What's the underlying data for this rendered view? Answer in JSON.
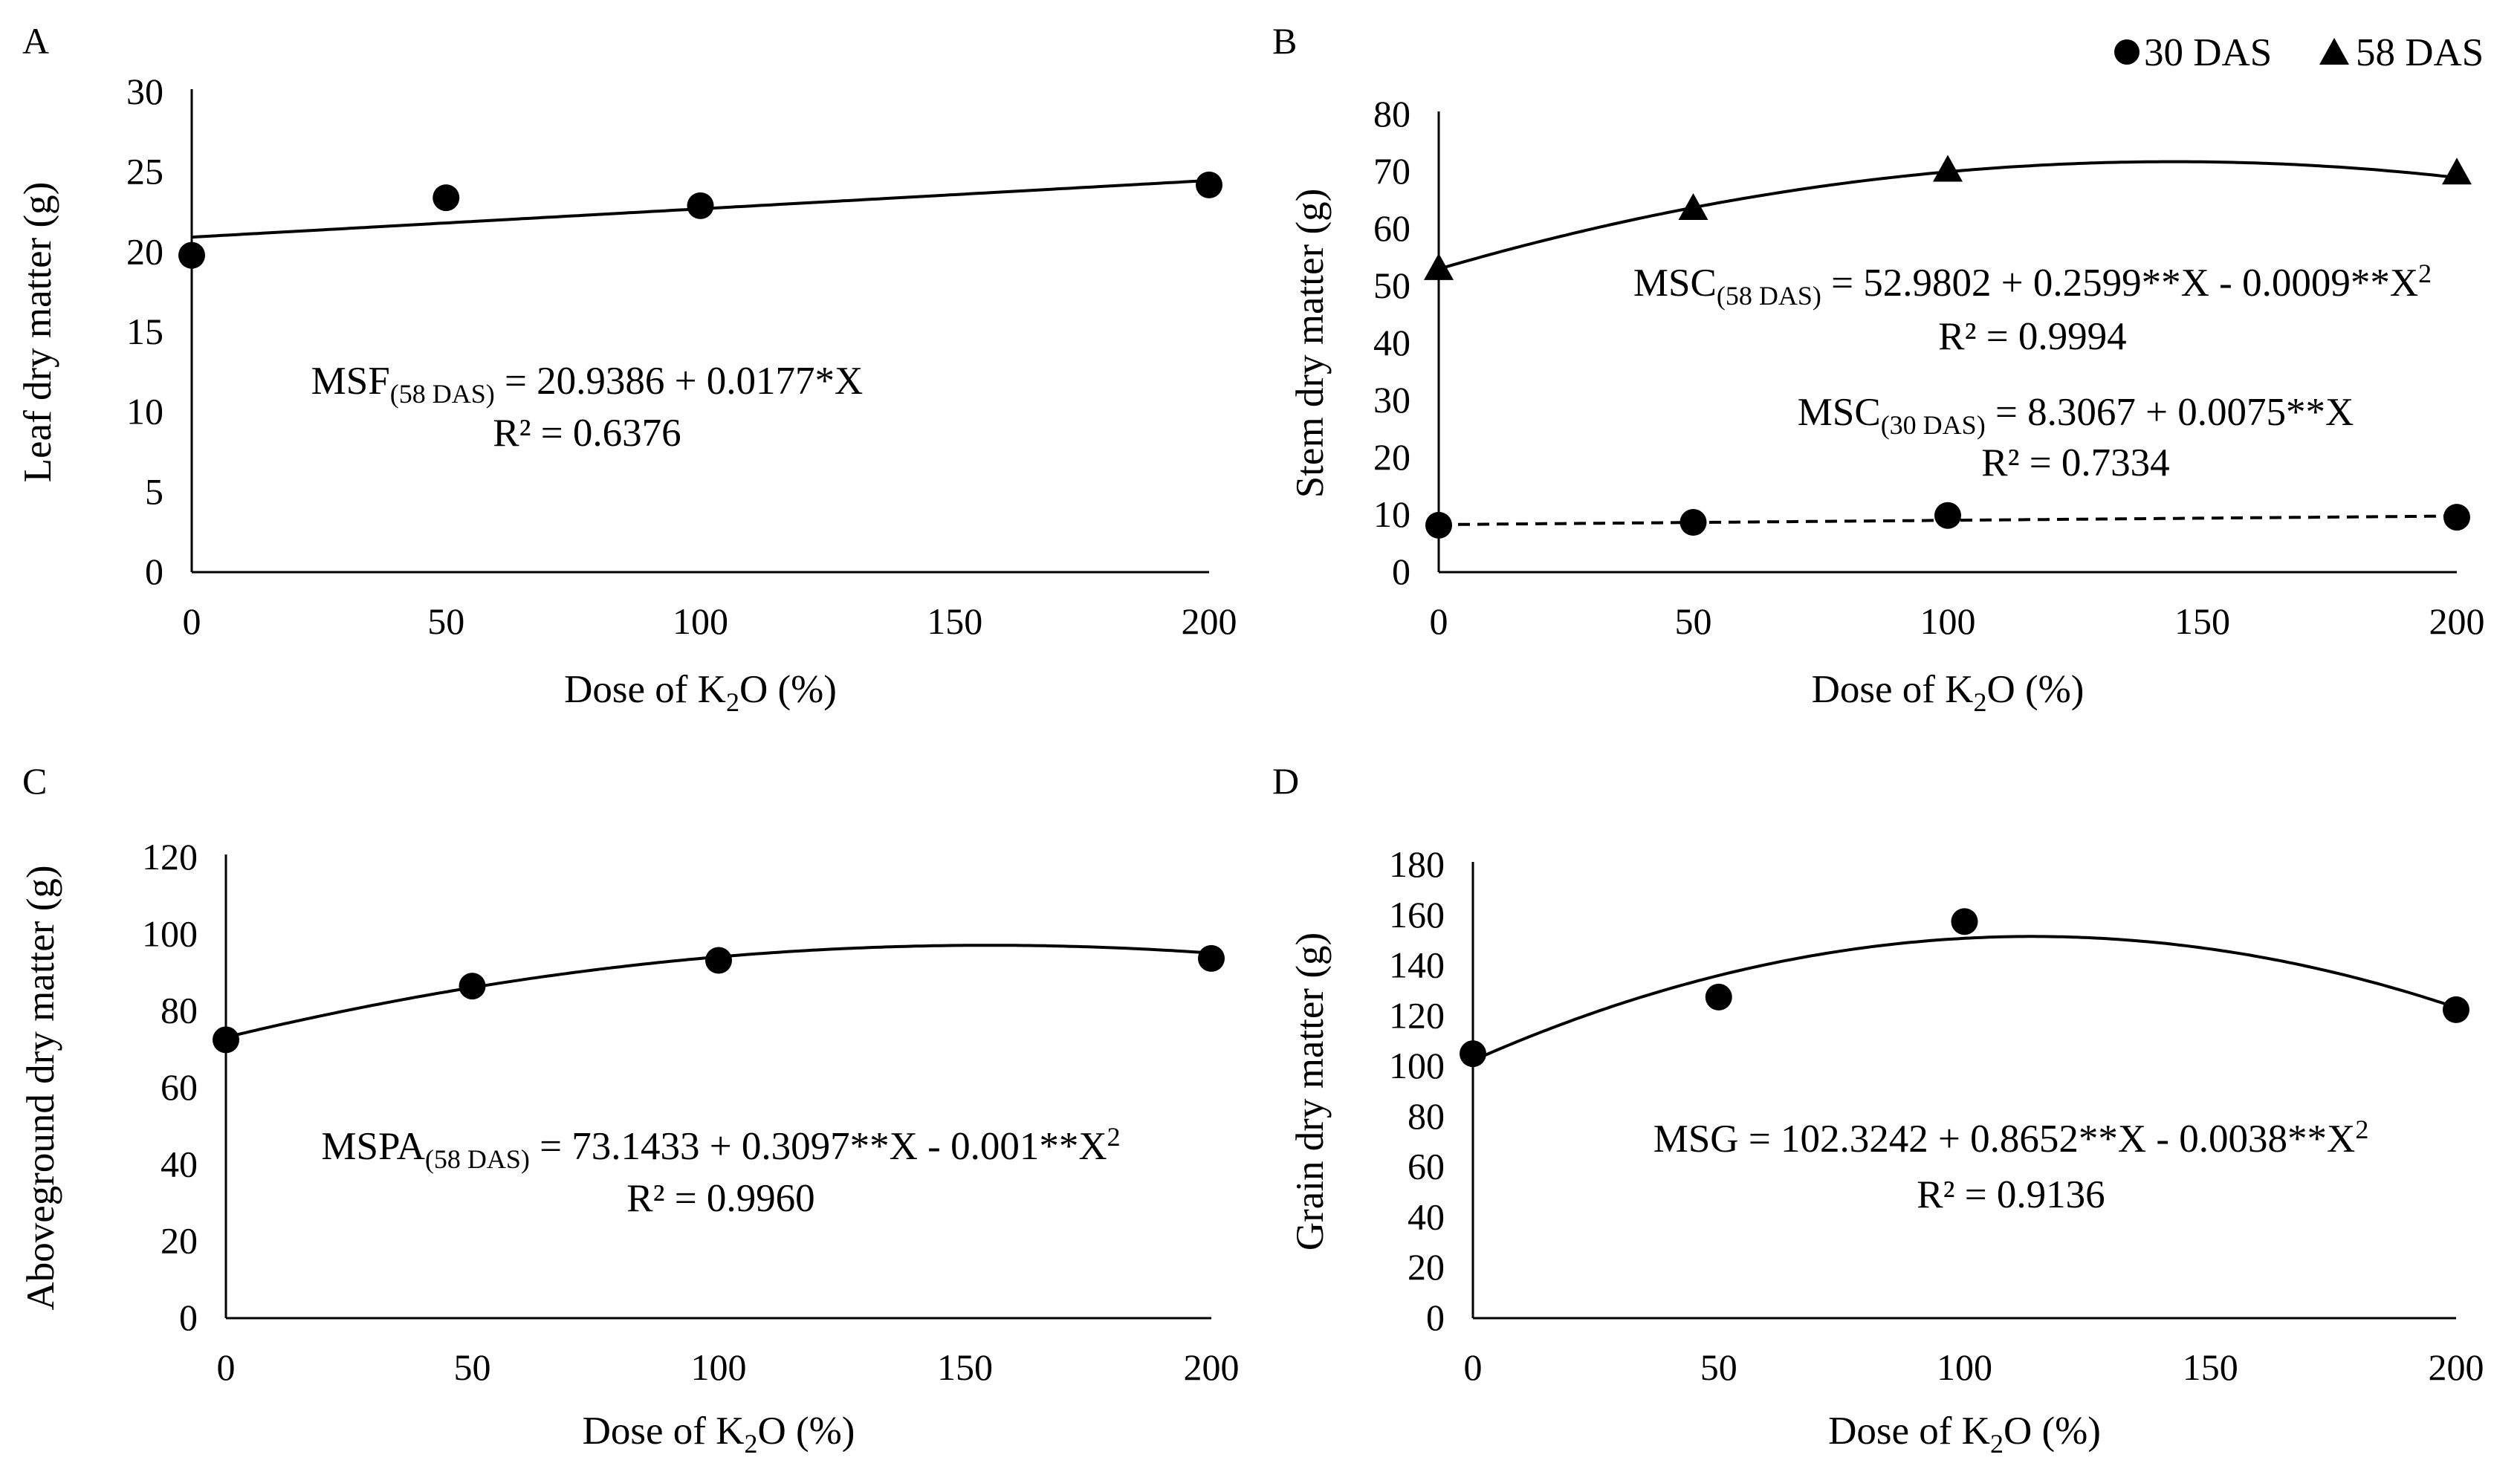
{
  "legend": {
    "series_30": "30 DAS",
    "series_58": "58 DAS"
  },
  "chart_data": [
    {
      "panel": "A",
      "type": "scatter",
      "xlabel": "Dose of K2O (%)",
      "xlabel_parts": [
        "Dose of K",
        "2",
        "O (%)"
      ],
      "ylabel": "Leaf dry matter (g)",
      "x_ticks": [
        "0",
        "50",
        "100",
        "150",
        "200"
      ],
      "y_ticks": [
        "0",
        "5",
        "10",
        "15",
        "20",
        "25",
        "30"
      ],
      "ylim": [
        0,
        30
      ],
      "series": [
        {
          "name": "58 DAS",
          "marker": "circle",
          "x": [
            0,
            50,
            100,
            200
          ],
          "y": [
            19.8,
            23.4,
            22.9,
            24.2
          ],
          "fit": {
            "intercept": 20.9386,
            "linear": 0.0177,
            "quadratic": 0,
            "dashed": false
          },
          "equation": {
            "lhs": "MSF",
            "sub": "(58 DAS)",
            "rhs": " = 20.9386  + 0.0177*X",
            "sup": "",
            "r2": "R² = 0.6376"
          }
        }
      ]
    },
    {
      "panel": "B",
      "type": "scatter",
      "xlabel": "Dose of K2O (%)",
      "xlabel_parts": [
        "Dose of K",
        "2",
        "O (%)"
      ],
      "ylabel": "Stem dry matter (g)",
      "x_ticks": [
        "0",
        "50",
        "100",
        "150",
        "200"
      ],
      "y_ticks": [
        "0",
        "10",
        "20",
        "30",
        "40",
        "50",
        "60",
        "70",
        "80"
      ],
      "ylim": [
        0,
        80
      ],
      "series": [
        {
          "name": "58 DAS",
          "marker": "triangle",
          "x": [
            0,
            50,
            100,
            200
          ],
          "y": [
            53,
            63.5,
            70.2,
            69.7
          ],
          "fit": {
            "intercept": 52.9802,
            "linear": 0.2599,
            "quadratic": -0.0009,
            "dashed": false
          },
          "equation": {
            "lhs": "MSC",
            "sub": "(58 DAS)",
            "rhs": " = 52.9802 + 0.2599**X - 0.0009**X",
            "sup": "2",
            "r2": "R² = 0.9994"
          }
        },
        {
          "name": "30 DAS",
          "marker": "circle",
          "x": [
            0,
            50,
            100,
            200
          ],
          "y": [
            8.2,
            8.7,
            9.9,
            9.6
          ],
          "fit": {
            "intercept": 8.3067,
            "linear": 0.0075,
            "quadratic": 0,
            "dashed": true
          },
          "equation": {
            "lhs": "MSC",
            "sub": "(30 DAS)",
            "rhs": " = 8.3067 + 0.0075**X",
            "sup": "",
            "r2": "R² = 0.7334"
          }
        }
      ]
    },
    {
      "panel": "C",
      "type": "scatter",
      "xlabel": "Dose of K2O (%)",
      "xlabel_parts": [
        "Dose of K",
        "2",
        "O (%)"
      ],
      "ylabel": "Aboveground  dry matter (g)",
      "x_ticks": [
        "0",
        "50",
        "100",
        "150",
        "200"
      ],
      "y_ticks": [
        "0",
        "20",
        "40",
        "60",
        "80",
        "100",
        "120"
      ],
      "ylim": [
        0,
        120
      ],
      "series": [
        {
          "name": "58 DAS",
          "marker": "circle",
          "x": [
            0,
            50,
            100,
            200
          ],
          "y": [
            72.5,
            86.5,
            93.2,
            93.7
          ],
          "fit": {
            "intercept": 73.1433,
            "linear": 0.3097,
            "quadratic": -0.001,
            "dashed": false
          },
          "equation": {
            "lhs": "MSPA",
            "sub": "(58 DAS)",
            "rhs": " = 73.1433  + 0.3097**X - 0.001**X",
            "sup": "2",
            "r2": "R² = 0.9960"
          }
        }
      ]
    },
    {
      "panel": "D",
      "type": "scatter",
      "xlabel": "Dose of K2O (%)",
      "xlabel_parts": [
        "Dose of K",
        "2",
        "O (%)"
      ],
      "ylabel": "Grain dry matter (g)",
      "x_ticks": [
        "0",
        "50",
        "100",
        "150",
        "200"
      ],
      "y_ticks": [
        "0",
        "20",
        "40",
        "60",
        "80",
        "100",
        "120",
        "140",
        "160",
        "180"
      ],
      "ylim": [
        0,
        180
      ],
      "series": [
        {
          "name": "MSG",
          "marker": "circle",
          "x": [
            0,
            50,
            100,
            200
          ],
          "y": [
            105,
            127.5,
            157.5,
            122.5
          ],
          "fit": {
            "intercept": 102.3242,
            "linear": 0.8652,
            "quadratic": -0.0038,
            "dashed": false
          },
          "equation": {
            "lhs": "MSG",
            "sub": "",
            "rhs": " = 102.3242 + 0.8652**X - 0.0038**X",
            "sup": "2",
            "r2": "R² = 0.9136"
          }
        }
      ]
    }
  ]
}
